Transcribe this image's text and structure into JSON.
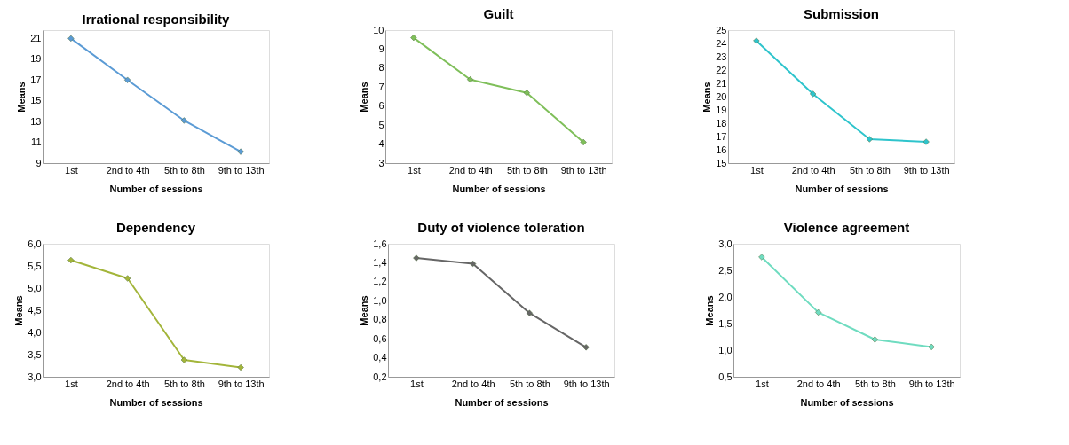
{
  "chart_data": [
    {
      "type": "line",
      "title": "Irrational responsibility",
      "xlabel": "Number of sessions",
      "ylabel": "Means",
      "categories": [
        "1st",
        "2nd to 4th",
        "5th to 8th",
        "9th to 13th"
      ],
      "series": [
        {
          "color": "#5b9bd5",
          "values": [
            21,
            17,
            13.1,
            10.1
          ]
        }
      ],
      "ylim": [
        9,
        21.8
      ],
      "yticks": [
        9,
        11,
        13,
        15,
        17,
        19,
        21
      ],
      "grid": false,
      "marker": "diamond",
      "line_style": "solid"
    },
    {
      "type": "line",
      "title": "Guilt",
      "xlabel": "Number of sessions",
      "ylabel": "Means",
      "categories": [
        "1st",
        "2nd to 4th",
        "5th to 8th",
        "9th to 13th"
      ],
      "series": [
        {
          "color": "#7fbf5a",
          "values": [
            9.6,
            7.4,
            6.7,
            4.1
          ]
        }
      ],
      "ylim": [
        3,
        10
      ],
      "yticks": [
        3,
        4,
        5,
        6,
        7,
        8,
        9,
        10
      ],
      "grid": false,
      "marker": "diamond",
      "line_style": "solid"
    },
    {
      "type": "line",
      "title": "Submission",
      "xlabel": "Number of sessions",
      "ylabel": "Means",
      "categories": [
        "1st",
        "2nd to 4th",
        "5th to 8th",
        "9th to 13th"
      ],
      "series": [
        {
          "color": "#2ec4cc",
          "values": [
            24.2,
            20.2,
            16.8,
            16.6
          ]
        }
      ],
      "ylim": [
        15,
        25
      ],
      "yticks": [
        15,
        16,
        17,
        18,
        19,
        20,
        21,
        22,
        23,
        24,
        25
      ],
      "grid": false,
      "marker": "diamond",
      "line_style": "solid"
    },
    {
      "type": "line",
      "title": "Dependency",
      "xlabel": "Number of sessions",
      "ylabel": "Means",
      "categories": [
        "1st",
        "2nd to 4th",
        "5th to 8th",
        "9th to 13th"
      ],
      "series": [
        {
          "color": "#a3b53a",
          "values": [
            5.63,
            5.22,
            3.38,
            3.21
          ]
        }
      ],
      "ylim": [
        3,
        6
      ],
      "yticks": [
        {
          "value": 3,
          "label": "3,0"
        },
        {
          "value": 3.5,
          "label": "3,5"
        },
        {
          "value": 4,
          "label": "4,0"
        },
        {
          "value": 4.5,
          "label": "4,5"
        },
        {
          "value": 5,
          "label": "5,0"
        },
        {
          "value": 5.5,
          "label": "5,5"
        },
        {
          "value": 6,
          "label": "6,0"
        }
      ],
      "grid": false,
      "marker": "diamond",
      "line_style": "solid"
    },
    {
      "type": "line",
      "title": "Duty of violence toleration",
      "xlabel": "Number of sessions",
      "ylabel": "Means",
      "categories": [
        "1st",
        "2nd to 4th",
        "5th to 8th",
        "9th to 13th"
      ],
      "series": [
        {
          "color": "#666666",
          "values": [
            1.45,
            1.39,
            0.87,
            0.51
          ]
        }
      ],
      "ylim": [
        0.2,
        1.6
      ],
      "yticks": [
        {
          "value": 0.2,
          "label": "0,2"
        },
        {
          "value": 0.4,
          "label": "0,4"
        },
        {
          "value": 0.6,
          "label": "0,6"
        },
        {
          "value": 0.8,
          "label": "0,8"
        },
        {
          "value": 1.0,
          "label": "1,0"
        },
        {
          "value": 1.2,
          "label": "1,2"
        },
        {
          "value": 1.4,
          "label": "1,4"
        },
        {
          "value": 1.6,
          "label": "1,6"
        }
      ],
      "grid": false,
      "marker": "diamond",
      "line_style": "solid"
    },
    {
      "type": "line",
      "title": "Violence agreement",
      "xlabel": "Number of sessions",
      "ylabel": "Means",
      "categories": [
        "1st",
        "2nd to 4th",
        "5th to 8th",
        "9th to 13th"
      ],
      "series": [
        {
          "color": "#6fdcc0",
          "values": [
            2.75,
            1.71,
            1.2,
            1.06
          ]
        }
      ],
      "ylim": [
        0.5,
        3.0
      ],
      "yticks": [
        {
          "value": 0.5,
          "label": "0,5"
        },
        {
          "value": 1.0,
          "label": "1,0"
        },
        {
          "value": 1.5,
          "label": "1,5"
        },
        {
          "value": 2.0,
          "label": "2,0"
        },
        {
          "value": 2.5,
          "label": "2,5"
        },
        {
          "value": 3.0,
          "label": "3,0"
        }
      ],
      "grid": false,
      "marker": "diamond",
      "line_style": "solid"
    }
  ]
}
